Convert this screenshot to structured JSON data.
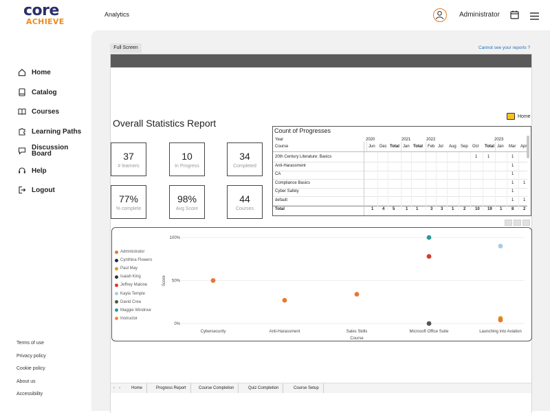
{
  "brand": {
    "word1": "core",
    "word2": "ACHIEVE"
  },
  "header": {
    "title": "Analytics",
    "user": "Administrator"
  },
  "sidebar": {
    "items": [
      {
        "label": "Home",
        "icon": "home-icon"
      },
      {
        "label": "Catalog",
        "icon": "book-icon"
      },
      {
        "label": "Courses",
        "icon": "open-book-icon"
      },
      {
        "label": "Learning Paths",
        "icon": "puzzle-icon"
      },
      {
        "label": "Discussion Board",
        "icon": "chat-icon"
      },
      {
        "label": "Help",
        "icon": "headset-icon"
      },
      {
        "label": "Logout",
        "icon": "logout-icon"
      }
    ],
    "footer": [
      "Terms of use",
      "Privacy policy",
      "Cookie policy",
      "About us",
      "Accessibility"
    ]
  },
  "main": {
    "fullscreen_tab": "Full Screen",
    "cannot_see": "Cannot see your reports ?",
    "home_label": "Home",
    "report_title": "Overall Statistics Report",
    "cards": [
      {
        "value": "37",
        "label": "# learners"
      },
      {
        "value": "10",
        "label": "In Progress"
      },
      {
        "value": "34",
        "label": "Completed"
      },
      {
        "value": "77%",
        "label": "% complete"
      },
      {
        "value": "98%",
        "label": "Avg Score"
      },
      {
        "value": "44",
        "label": "Courses"
      }
    ],
    "matrix": {
      "title": "Count of Progresses",
      "year_label": "Year",
      "course_label": "Course",
      "years": [
        "2020",
        "2021",
        "2022",
        "2023"
      ],
      "months": [
        "Jun",
        "Dec",
        "Total",
        "Jan",
        "Total",
        "Feb",
        "Jul",
        "Aug",
        "Sep",
        "Oct",
        "Total",
        "Jan",
        "Mar",
        "Apr"
      ],
      "rows": [
        {
          "course": "20th Century Literature: Basics",
          "cells": [
            "",
            "",
            "",
            "",
            "",
            "",
            "",
            "",
            "",
            "1",
            "1",
            "",
            "1",
            ""
          ]
        },
        {
          "course": "Anti-Harassment",
          "cells": [
            "",
            "",
            "",
            "",
            "",
            "",
            "",
            "",
            "",
            "",
            "",
            "",
            "1",
            ""
          ]
        },
        {
          "course": "CA",
          "cells": [
            "",
            "",
            "",
            "",
            "",
            "",
            "",
            "",
            "",
            "",
            "",
            "",
            "1",
            ""
          ]
        },
        {
          "course": "Compliance Basics",
          "cells": [
            "",
            "",
            "",
            "",
            "",
            "",
            "",
            "",
            "",
            "",
            "",
            "",
            "1",
            "1"
          ]
        },
        {
          "course": "Cyber Safety",
          "cells": [
            "",
            "",
            "",
            "",
            "",
            "",
            "",
            "",
            "",
            "",
            "",
            "",
            "1",
            ""
          ]
        },
        {
          "course": "default",
          "cells": [
            "",
            "",
            "",
            "",
            "",
            "",
            "",
            "",
            "",
            "",
            "",
            "",
            "1",
            "1"
          ]
        }
      ],
      "total_label": "Total",
      "totals": [
        "1",
        "4",
        "5",
        "1",
        "1",
        "3",
        "3",
        "1",
        "2",
        "10",
        "19",
        "1",
        "8",
        "2"
      ]
    },
    "tabs": [
      "Home",
      "Progress Report",
      "Course Completion",
      "Quiz Completion",
      "Course Setup"
    ]
  },
  "chart_data": {
    "type": "scatter",
    "xlabel": "Course",
    "ylabel": "Score",
    "categories": [
      "Cybersecurity",
      "Anti-Harassment",
      "Sales Skills",
      "Microsoft Office Suite",
      "Launching into Aviation"
    ],
    "yticks": [
      "0%",
      "50%",
      "100%"
    ],
    "ylim": [
      0,
      100
    ],
    "legend": [
      {
        "name": "Administrator",
        "color": "#e8772e"
      },
      {
        "name": "Cynthina Flowers",
        "color": "#1f2a44"
      },
      {
        "name": "Paul May",
        "color": "#d4a017"
      },
      {
        "name": "Isaiah King",
        "color": "#333333"
      },
      {
        "name": "Jeffrey Malone",
        "color": "#d63a2f"
      },
      {
        "name": "Kayla Temple",
        "color": "#a6cce3"
      },
      {
        "name": "David Crea",
        "color": "#4a5a3a"
      },
      {
        "name": "Maggie Windrow",
        "color": "#2a9a9a"
      },
      {
        "name": "Instructor",
        "color": "#f08c3a"
      }
    ],
    "points": [
      {
        "x": "Cybersecurity",
        "y": 50,
        "color": "#e8772e"
      },
      {
        "x": "Anti-Harassment",
        "y": 27,
        "color": "#e8772e"
      },
      {
        "x": "Sales Skills",
        "y": 34,
        "color": "#e8772e"
      },
      {
        "x": "Microsoft Office Suite",
        "y": 100,
        "color": "#2a9a9a"
      },
      {
        "x": "Microsoft Office Suite",
        "y": 78,
        "color": "#d63a2f"
      },
      {
        "x": "Microsoft Office Suite",
        "y": 0,
        "color": "#555555"
      },
      {
        "x": "Launching into Aviation",
        "y": 90,
        "color": "#a6cce3"
      },
      {
        "x": "Launching into Aviation",
        "y": 6,
        "color": "#d4a017"
      },
      {
        "x": "Launching into Aviation",
        "y": 4,
        "color": "#e8772e"
      }
    ]
  }
}
